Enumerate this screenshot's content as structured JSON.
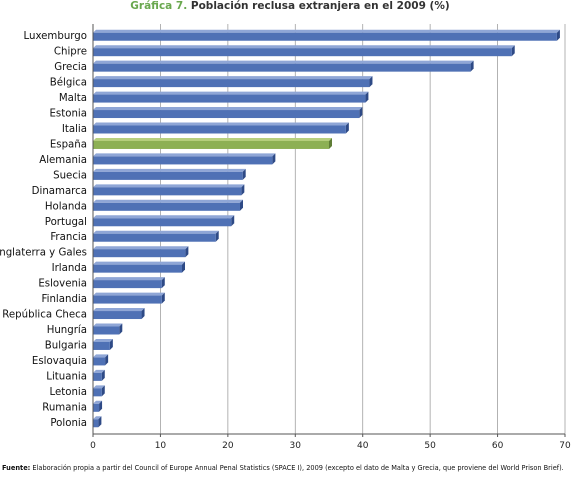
{
  "title_prefix": "Gráfica 7.",
  "title_text": "Población reclusa extranjera en el 2009 (%)",
  "source_label": "Fuente:",
  "source_text": "Elaboración propia a partir del Council of Europe Annual Penal Statistics (SPACE I), 2009 (excepto el dato de Malta y Grecia, que proviene del World Prison Brief).",
  "colors": {
    "bar": "#4f71b5",
    "bar_highlight": "#8db054",
    "gridline": "#a0a0a0",
    "axis": "#555555"
  },
  "chart_data": {
    "type": "bar",
    "orientation": "horizontal",
    "title": "Población reclusa extranjera en el 2009 (%)",
    "categories": [
      "Luxemburgo",
      "Chipre",
      "Grecia",
      "Bélgica",
      "Malta",
      "Estonia",
      "Italia",
      "España",
      "Alemania",
      "Suecia",
      "Dinamarca",
      "Holanda",
      "Portugal",
      "Francia",
      "Inglaterra y Gales",
      "Irlanda",
      "Eslovenia",
      "Finlandia",
      "República Checa",
      "Hungría",
      "Bulgaria",
      "Eslovaquia",
      "Lituania",
      "Letonia",
      "Rumania",
      "Polonia"
    ],
    "values": [
      68.8,
      62.1,
      56.0,
      41.0,
      40.4,
      39.5,
      37.5,
      35.0,
      26.6,
      22.2,
      22.0,
      21.8,
      20.5,
      18.2,
      13.7,
      13.2,
      10.2,
      10.2,
      7.2,
      3.9,
      2.5,
      1.8,
      1.3,
      1.3,
      0.9,
      0.8
    ],
    "highlight": "España",
    "xlim": [
      0,
      70
    ],
    "xticks": [
      0,
      10,
      20,
      30,
      40,
      50,
      60,
      70
    ],
    "grid": true,
    "xlabel": "",
    "ylabel": ""
  }
}
